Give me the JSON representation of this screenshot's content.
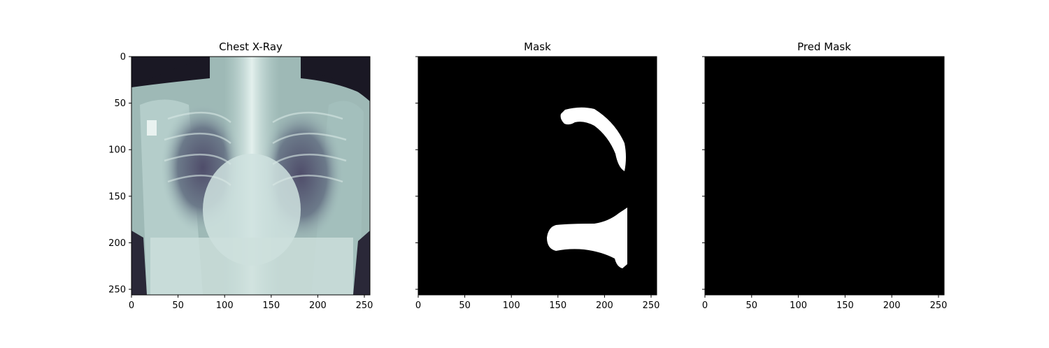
{
  "panels": [
    {
      "title": "Chest X-Ray",
      "image": "chest-xray-image",
      "colormap": "bone",
      "y_tick_labels_visible": true,
      "x_ticks": [
        0,
        50,
        100,
        150,
        200,
        250
      ],
      "y_ticks": [
        0,
        50,
        100,
        150,
        200,
        250
      ],
      "xlim": [
        0,
        256
      ],
      "ylim": [
        256,
        0
      ]
    },
    {
      "title": "Mask",
      "image": "ground-truth-mask",
      "colormap": "gray",
      "y_tick_labels_visible": false,
      "x_ticks": [
        0,
        50,
        100,
        150,
        200,
        250
      ],
      "y_ticks": [
        0,
        50,
        100,
        150,
        200,
        250
      ],
      "xlim": [
        0,
        256
      ],
      "ylim": [
        256,
        0
      ]
    },
    {
      "title": "Pred Mask",
      "image": "predicted-mask-empty",
      "colormap": "gray",
      "y_tick_labels_visible": false,
      "x_ticks": [
        0,
        50,
        100,
        150,
        200,
        250
      ],
      "y_ticks": [
        0,
        50,
        100,
        150,
        200,
        250
      ],
      "xlim": [
        0,
        256
      ],
      "ylim": [
        256,
        0
      ]
    }
  ],
  "colors": {
    "background": "#ffffff",
    "mask_background": "#000000",
    "mask_foreground": "#ffffff",
    "xray_dark": "#1a1824",
    "xray_light": "#dcebe8"
  }
}
